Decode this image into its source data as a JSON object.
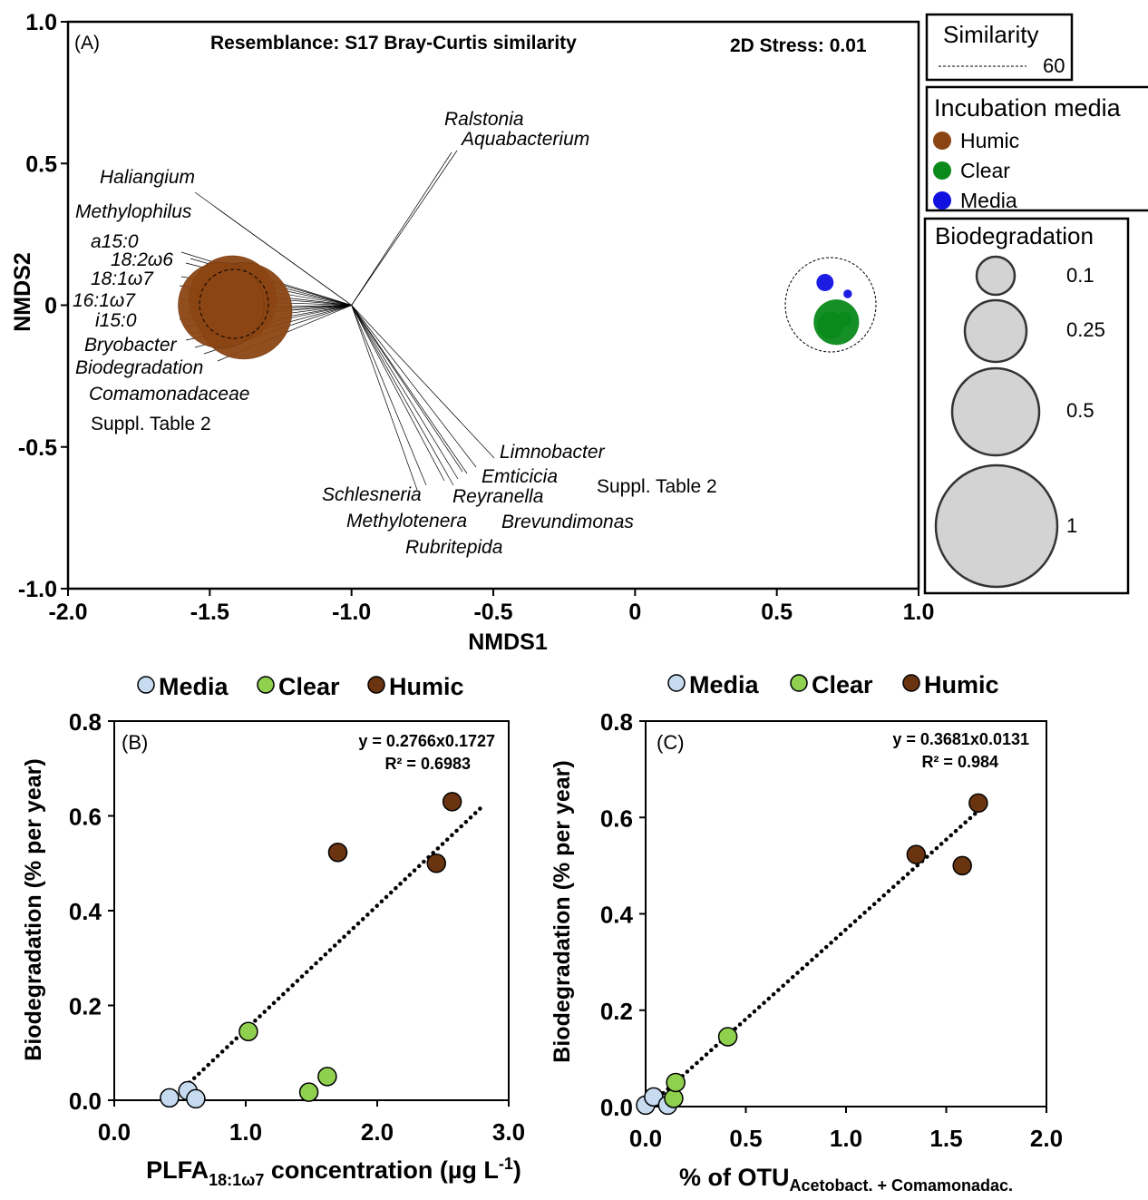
{
  "chart_data": [
    {
      "panel": "A",
      "type": "scatter",
      "panel_label": "(A)",
      "title": "Resemblance: S17 Bray-Curtis similarity",
      "stress_label": "2D Stress: 0.01",
      "xlabel": "NMDS1",
      "ylabel": "NMDS2",
      "xlim": [
        -2.0,
        1.0
      ],
      "ylim": [
        -1.0,
        1.0
      ],
      "xticks": [
        -2.0,
        -1.5,
        -1.0,
        -0.5,
        0,
        0.5,
        1.0
      ],
      "xtick_labels": [
        "-2.0",
        "-1.5",
        "-1.0",
        "-0.5",
        "0",
        "0.5",
        "1.0"
      ],
      "yticks": [
        1.0,
        0.5,
        0,
        -0.5,
        -1.0
      ],
      "ytick_labels": [
        "1.0",
        "0.5",
        "0",
        "-0.5",
        "-1.0"
      ],
      "vector_origin": [
        -1.0,
        0.0
      ],
      "vectors_upper_left": [
        "Haliangium",
        "Methylophilus",
        "a15:0",
        "18:2ω6",
        "18:1ω7",
        "16:1ω7",
        "i15:0",
        "Bryobacter",
        "Biodegradation",
        "Comamonadaceae"
      ],
      "vectors_upper_left_note": "Suppl. Table 2",
      "vectors_up": [
        "Ralstonia",
        "Aquabacterium"
      ],
      "vectors_down": [
        "Limnobacter",
        "Emticicia",
        "Schlesneria",
        "Reyranella",
        "Methylotenera",
        "Brevundimonas",
        "Rubritepida"
      ],
      "vectors_down_note": "Suppl. Table 2",
      "points": [
        {
          "group": "Humic",
          "x": -1.42,
          "y": 0.02,
          "biodegradation": 0.52
        },
        {
          "group": "Humic",
          "x": -1.38,
          "y": -0.02,
          "biodegradation": 0.63
        },
        {
          "group": "Humic",
          "x": -1.46,
          "y": 0.0,
          "biodegradation": 0.5
        },
        {
          "group": "Clear",
          "x": 0.69,
          "y": -0.07,
          "biodegradation": 0.05
        },
        {
          "group": "Clear",
          "x": 0.71,
          "y": -0.06,
          "biodegradation": 0.14
        },
        {
          "group": "Clear",
          "x": 0.74,
          "y": -0.05,
          "biodegradation": 0.015
        },
        {
          "group": "Media",
          "x": 0.67,
          "y": 0.08,
          "biodegradation": 0.02
        },
        {
          "group": "Media",
          "x": 0.75,
          "y": 0.04,
          "biodegradation": 0.005
        }
      ]
    },
    {
      "panel": "B",
      "type": "scatter",
      "panel_label": "(B)",
      "equation": "y = 0.2766x0.1727",
      "r2": "R² = 0.6983",
      "xlabel_main": "PLFA",
      "xlabel_sub": "18:1ω7",
      "xlabel_rest": " concentration (µg L",
      "xlabel_sup": "-1",
      "xlabel_end": ")",
      "ylabel": "Biodegradation  (% per year)",
      "xlim": [
        0,
        3.0
      ],
      "ylim": [
        0,
        0.8
      ],
      "xtick_labels": [
        "0.0",
        "1.0",
        "2.0",
        "3.0"
      ],
      "ytick_labels": [
        "0.0",
        "0.2",
        "0.4",
        "0.6",
        "0.8"
      ],
      "trendline": {
        "x": [
          0.43,
          2.8
        ],
        "y": [
          0.0,
          0.62
        ]
      },
      "series": [
        {
          "name": "Media",
          "points": [
            [
              0.42,
              0.005
            ],
            [
              0.56,
              0.02
            ],
            [
              0.62,
              0.003
            ]
          ]
        },
        {
          "name": "Clear",
          "points": [
            [
              1.02,
              0.145
            ],
            [
              1.48,
              0.017
            ],
            [
              1.62,
              0.05
            ]
          ]
        },
        {
          "name": "Humic",
          "points": [
            [
              1.7,
              0.523
            ],
            [
              2.45,
              0.5
            ],
            [
              2.57,
              0.63
            ]
          ]
        }
      ]
    },
    {
      "panel": "C",
      "type": "scatter",
      "panel_label": "(C)",
      "equation": "y = 0.3681x0.0131",
      "r2": "R² = 0.984",
      "xlabel_main": "% of OTU",
      "xlabel_sub": "Acetobact. + Comamonadac.",
      "ylabel": "Biodegradation (% per year)",
      "xlim": [
        0,
        2.0
      ],
      "ylim": [
        0,
        0.8
      ],
      "xtick_labels": [
        "0.0",
        "0.5",
        "1.0",
        "1.5",
        "2.0"
      ],
      "ytick_labels": [
        "0.0",
        "0.2",
        "0.4",
        "0.6",
        "0.8"
      ],
      "trendline": {
        "x": [
          0.04,
          1.65
        ],
        "y": [
          0.01,
          0.61
        ]
      },
      "series": [
        {
          "name": "Media",
          "points": [
            [
              0.0,
              0.003
            ],
            [
              0.04,
              0.02
            ],
            [
              0.11,
              0.003
            ]
          ]
        },
        {
          "name": "Clear",
          "points": [
            [
              0.14,
              0.017
            ],
            [
              0.15,
              0.05
            ],
            [
              0.41,
              0.145
            ]
          ]
        },
        {
          "name": "Humic",
          "points": [
            [
              1.35,
              0.523
            ],
            [
              1.58,
              0.5
            ],
            [
              1.66,
              0.63
            ]
          ]
        }
      ]
    }
  ],
  "legends": {
    "similarity": {
      "title": "Similarity",
      "value": "60"
    },
    "incubation_media": {
      "title": "Incubation media",
      "items": [
        "Humic",
        "Clear",
        "Media"
      ]
    },
    "biodegradation": {
      "title": "Biodegradation",
      "sizes": [
        "0.1",
        "0.25",
        "0.5",
        "1"
      ]
    },
    "bc_legend": [
      "Media",
      "Clear",
      "Humic"
    ]
  },
  "colors": {
    "humic": "#8b4513",
    "clear_a": "#0a8a1a",
    "media_a": "#1010e0",
    "media_bc": "#c6dbef",
    "clear_bc": "#8fd14f",
    "humic_bc": "#6b3410",
    "bubble_legend": "#d3d3d3"
  }
}
